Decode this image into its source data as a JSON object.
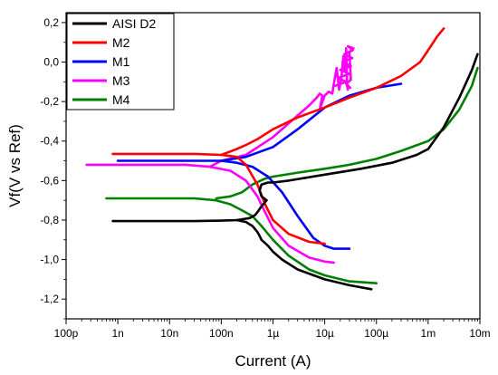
{
  "chart_data": {
    "type": "line",
    "title": "",
    "xlabel": "Current (A)",
    "ylabel": "Vf(V vs  Ref)",
    "x_scale": "log",
    "xlim": [
      1e-10,
      0.01
    ],
    "ylim": [
      -1.3,
      0.25
    ],
    "x_ticks": [
      {
        "v": 1e-10,
        "label": "100p"
      },
      {
        "v": 1e-09,
        "label": "1n"
      },
      {
        "v": 1e-08,
        "label": "10n"
      },
      {
        "v": 1e-07,
        "label": "100n"
      },
      {
        "v": 1e-06,
        "label": "1µ"
      },
      {
        "v": 1e-05,
        "label": "10µ"
      },
      {
        "v": 0.0001,
        "label": "100µ"
      },
      {
        "v": 0.001,
        "label": "1m"
      },
      {
        "v": 0.01,
        "label": "10m"
      }
    ],
    "y_ticks": [
      {
        "v": 0.2,
        "label": "0,2"
      },
      {
        "v": 0.0,
        "label": "0,0"
      },
      {
        "v": -0.2,
        "label": "-0,2"
      },
      {
        "v": -0.4,
        "label": "-0,4"
      },
      {
        "v": -0.6,
        "label": "-0,6"
      },
      {
        "v": -0.8,
        "label": "-0,8"
      },
      {
        "v": -1.0,
        "label": "-1,0"
      },
      {
        "v": -1.2,
        "label": "-1,2"
      }
    ],
    "grid": false,
    "legend_position": "top-left",
    "series": [
      {
        "name": "AISI D2",
        "color": "#000000",
        "segments": [
          {
            "x": [
              8e-10,
              5e-09,
              3e-08,
              1e-07,
              2e-07,
              3.5e-07,
              4.5e-07,
              5e-07,
              6e-07,
              7.5e-07
            ],
            "y": [
              -0.805,
              -0.805,
              -0.805,
              -0.803,
              -0.8,
              -0.79,
              -0.775,
              -0.76,
              -0.73,
              -0.7
            ]
          },
          {
            "x": [
              2e-07,
              3e-07,
              4e-07,
              5e-07,
              5.5e-07,
              6e-07,
              8e-07,
              1e-06,
              1.5e-06,
              3e-06,
              1e-05,
              3e-05,
              8e-05
            ],
            "y": [
              -0.8,
              -0.81,
              -0.83,
              -0.86,
              -0.88,
              -0.9,
              -0.93,
              -0.96,
              -1.0,
              -1.05,
              -1.1,
              -1.13,
              -1.15
            ]
          },
          {
            "x": [
              7.5e-07,
              6e-07,
              5.5e-07,
              6e-07,
              8e-07,
              1e-06,
              2e-06,
              1e-05,
              5e-05,
              0.0002,
              0.0006,
              0.001,
              0.002,
              0.004,
              0.007,
              0.009
            ],
            "y": [
              -0.7,
              -0.68,
              -0.65,
              -0.62,
              -0.61,
              -0.61,
              -0.6,
              -0.57,
              -0.54,
              -0.51,
              -0.47,
              -0.44,
              -0.33,
              -0.18,
              -0.04,
              0.04
            ]
          }
        ]
      },
      {
        "name": "M2",
        "color": "#ff0000",
        "segments": [
          {
            "x": [
              8e-10,
              5e-09,
              3e-08,
              1e-07,
              2e-07,
              3e-07,
              5e-07,
              7e-07,
              1e-06,
              2e-06,
              5e-06,
              1e-05
            ],
            "y": [
              -0.465,
              -0.465,
              -0.465,
              -0.47,
              -0.48,
              -0.52,
              -0.62,
              -0.72,
              -0.8,
              -0.87,
              -0.91,
              -0.92
            ]
          },
          {
            "x": [
              1e-07,
              2e-07,
              3e-07,
              5e-07,
              1e-06,
              3e-06,
              1e-05,
              3e-05,
              0.0001,
              0.0003,
              0.0007,
              0.001,
              0.0015,
              0.002
            ],
            "y": [
              -0.47,
              -0.44,
              -0.42,
              -0.39,
              -0.34,
              -0.28,
              -0.23,
              -0.18,
              -0.13,
              -0.07,
              0.0,
              0.06,
              0.13,
              0.17
            ]
          }
        ]
      },
      {
        "name": "M1",
        "color": "#0000ff",
        "segments": [
          {
            "x": [
              1e-09,
              5e-09,
              3e-08,
              1e-07,
              2e-07,
              4e-07,
              8e-07,
              1.5e-06,
              3e-06,
              6e-06,
              1e-05,
              1.5e-05,
              2e-05,
              3e-05
            ],
            "y": [
              -0.5,
              -0.5,
              -0.5,
              -0.5,
              -0.51,
              -0.53,
              -0.58,
              -0.66,
              -0.78,
              -0.89,
              -0.93,
              -0.945,
              -0.945,
              -0.945
            ]
          },
          {
            "x": [
              1e-07,
              3e-07,
              1e-06,
              3e-06,
              1e-05,
              3e-05,
              0.0001,
              0.0003
            ],
            "y": [
              -0.5,
              -0.48,
              -0.43,
              -0.34,
              -0.23,
              -0.17,
              -0.13,
              -0.11
            ]
          }
        ]
      },
      {
        "name": "M3",
        "color": "#ff00ff",
        "segments": [
          {
            "x": [
              2.5e-10,
              1e-09,
              5e-09,
              2e-08,
              6e-08,
              1.5e-07,
              3e-07,
              5e-07,
              7e-07,
              1e-06,
              2e-06,
              5e-06,
              1e-05,
              1.5e-05
            ],
            "y": [
              -0.52,
              -0.52,
              -0.52,
              -0.52,
              -0.53,
              -0.55,
              -0.6,
              -0.68,
              -0.76,
              -0.84,
              -0.93,
              -0.99,
              -1.01,
              -1.015
            ]
          },
          {
            "x": [
              6e-08,
              1e-07,
              3e-07,
              1e-06,
              3e-06,
              5e-06,
              7e-06,
              8e-06,
              9e-06,
              8e-06,
              1e-05,
              1.2e-05,
              1.4e-05,
              1.5e-05,
              1.7e-05,
              1.9e-05,
              2.1e-05,
              2.3e-05,
              2.5e-05,
              2.6e-05,
              2.7e-05,
              2.8e-05
            ],
            "y": [
              -0.53,
              -0.5,
              -0.47,
              -0.38,
              -0.27,
              -0.22,
              -0.18,
              -0.16,
              -0.17,
              -0.24,
              -0.17,
              -0.15,
              -0.16,
              -0.11,
              -0.03,
              -0.14,
              -0.08,
              0.03,
              -0.05,
              0.07,
              -0.12,
              -0.14
            ]
          },
          {
            "x": [
              1.6e-05,
              2.6e-05,
              1.8e-05,
              3e-05,
              2e-05,
              3.2e-05,
              2.2e-05,
              3.4e-05,
              2.4e-05,
              3.5e-05,
              2.8e-05,
              3.6e-05,
              3e-05,
              3.2e-05,
              2.6e-05,
              3.1e-05
            ],
            "y": [
              -0.12,
              -0.1,
              -0.08,
              -0.06,
              -0.04,
              -0.02,
              0.0,
              0.02,
              0.04,
              0.06,
              0.08,
              0.07,
              0.05,
              -0.09,
              -0.11,
              -0.13
            ]
          }
        ]
      },
      {
        "name": "M4",
        "color": "#008000",
        "segments": [
          {
            "x": [
              6e-10,
              5e-09,
              3e-08,
              8e-08,
              1.5e-07,
              2.5e-07,
              4e-07,
              6e-07,
              1e-06,
              2e-06,
              5e-06,
              1e-05,
              3e-05,
              0.0001
            ],
            "y": [
              -0.69,
              -0.69,
              -0.69,
              -0.7,
              -0.72,
              -0.75,
              -0.78,
              -0.83,
              -0.9,
              -0.98,
              -1.05,
              -1.08,
              -1.11,
              -1.12
            ]
          },
          {
            "x": [
              8e-08,
              1.5e-07,
              2.5e-07,
              4e-07,
              7e-07,
              1e-06,
              3e-06,
              1e-05,
              3e-05,
              0.0001,
              0.0003,
              0.001,
              0.002,
              0.004,
              0.007,
              0.009
            ],
            "y": [
              -0.69,
              -0.68,
              -0.66,
              -0.62,
              -0.59,
              -0.58,
              -0.56,
              -0.54,
              -0.52,
              -0.49,
              -0.45,
              -0.4,
              -0.34,
              -0.24,
              -0.12,
              -0.03
            ]
          }
        ]
      }
    ]
  }
}
